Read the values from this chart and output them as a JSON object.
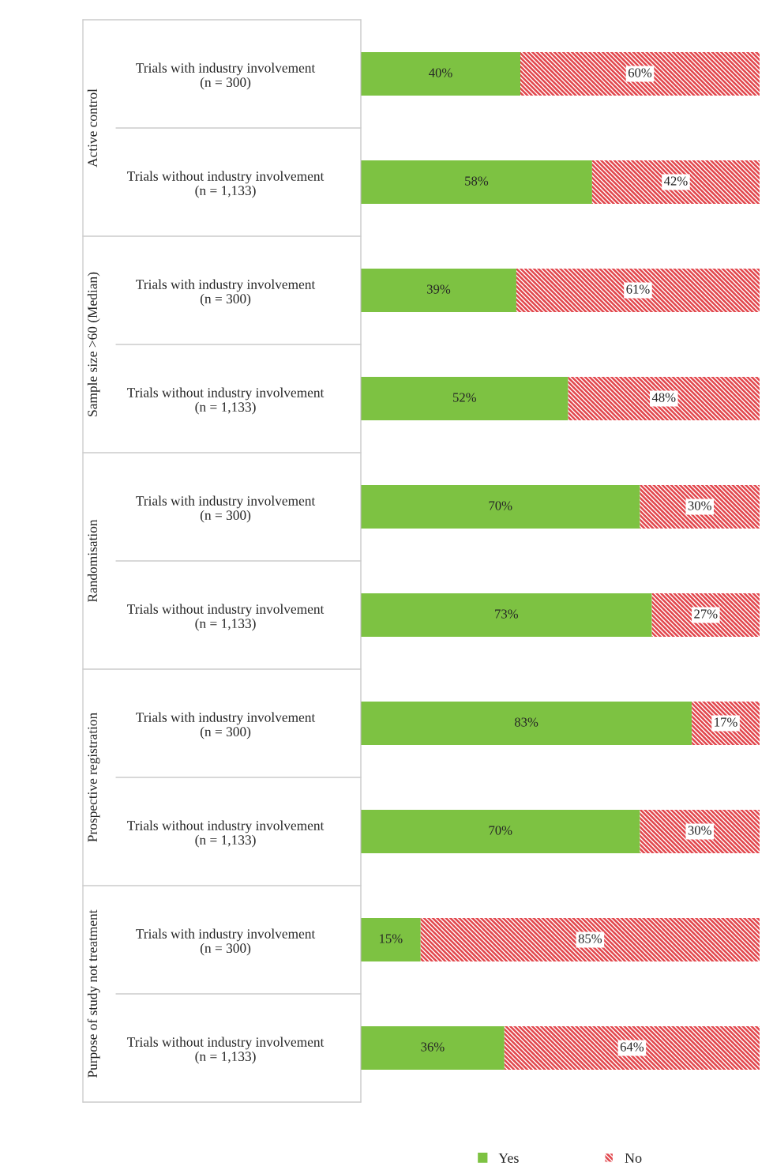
{
  "chart_data": {
    "type": "bar",
    "orientation": "horizontal",
    "stacked": true,
    "categories": [
      "Trials with industry involvement\n(n = 300)",
      "Trials without industry involvement\n(n = 1,133)",
      "Trials with industry involvement\n(n = 300)",
      "Trials without industry involvement\n(n = 1,133)",
      "Trials with industry involvement\n(n = 300)",
      "Trials without industry involvement\n(n = 1,133)",
      "Trials with industry involvement\n(n = 300)",
      "Trials without industry involvement\n(n = 1,133)",
      "Trials with industry involvement\n(n = 300)",
      "Trials without industry involvement\n(n = 1,133)"
    ],
    "annotations": [
      "Active control",
      "Sample size >60 (Median)",
      "Randomisation",
      "Prospective registration",
      "Purpose of study not treatment"
    ],
    "series": [
      {
        "name": "Yes",
        "color": "#7dc242",
        "values": [
          40,
          58,
          39,
          52,
          70,
          73,
          83,
          70,
          15,
          36
        ],
        "value_labels": [
          "40%",
          "58%",
          "39%",
          "52%",
          "70%",
          "73%",
          "83%",
          "70%",
          "15%",
          "36%"
        ]
      },
      {
        "name": "No",
        "color": "#e2474d",
        "values": [
          60,
          42,
          61,
          48,
          30,
          27,
          17,
          30,
          85,
          64
        ],
        "value_labels": [
          "60%",
          "42%",
          "61%",
          "48%",
          "30%",
          "27%",
          "17%",
          "30%",
          "85%",
          "64%"
        ]
      }
    ],
    "xlim": [
      0,
      100
    ],
    "tick_labels": "y",
    "legend": "bottom",
    "grid": false
  }
}
